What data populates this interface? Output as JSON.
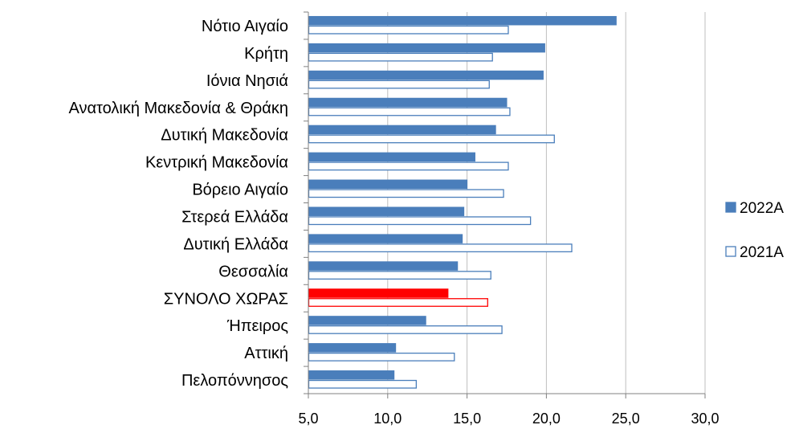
{
  "chart_data": {
    "type": "bar",
    "orientation": "horizontal",
    "categories": [
      "Νότιο Αιγαίο",
      "Κρήτη",
      "Ιόνια Νησιά",
      "Ανατολική Μακεδονία & Θράκη",
      "Δυτική Μακεδονία",
      "Κεντρική Μακεδονία",
      "Βόρειο Αιγαίο",
      "Στερεά Ελλάδα",
      "Δυτική Ελλάδα",
      "Θεσσαλία",
      "ΣΥΝΟΛΟ ΧΩΡΑΣ",
      "Ήπειρος",
      "Αττική",
      "Πελοπόννησος"
    ],
    "series": [
      {
        "name": "2022Α",
        "style": "filled",
        "color": "#4a7ebb",
        "values": [
          24.4,
          19.9,
          19.8,
          17.5,
          16.8,
          15.5,
          15.0,
          14.8,
          14.7,
          14.4,
          13.8,
          12.4,
          10.5,
          10.4
        ]
      },
      {
        "name": "2021Α",
        "style": "outline",
        "color": "#4a7ebb",
        "values": [
          17.6,
          16.6,
          16.4,
          17.7,
          20.5,
          17.6,
          17.3,
          19.0,
          21.6,
          16.5,
          16.3,
          17.2,
          14.2,
          11.8
        ]
      }
    ],
    "highlight": {
      "category": "ΣΥΝΟΛΟ ΧΩΡΑΣ",
      "color": "#ff0000"
    },
    "xlim": [
      5.0,
      30.0
    ],
    "xticks": [
      "5,0",
      "10,0",
      "15,0",
      "20,0",
      "25,0",
      "30,0"
    ],
    "grid": true,
    "legend_position": "right",
    "gridline_color": "#bfbfbf"
  }
}
